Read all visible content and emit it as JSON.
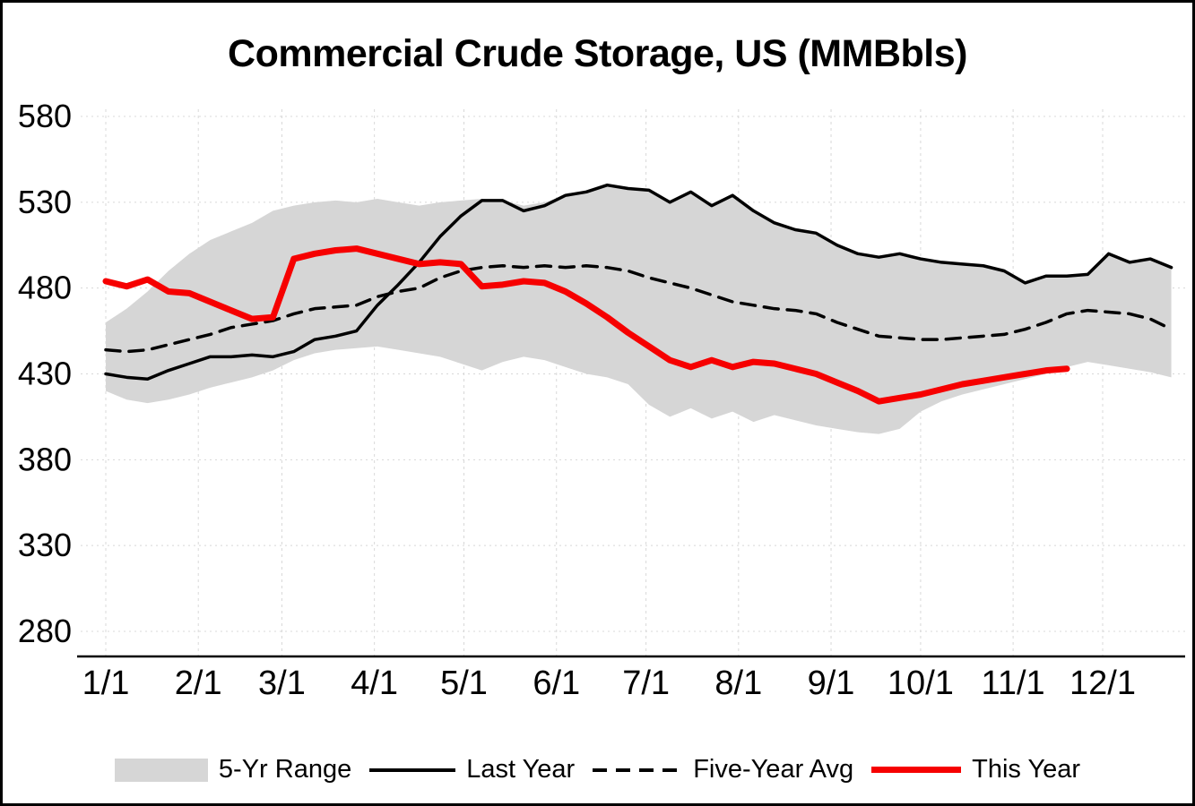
{
  "chart_data": {
    "type": "line",
    "title": "Commercial Crude Storage, US (MMBbls)",
    "ylabel": "",
    "xlabel": "",
    "ylim": [
      280,
      580
    ],
    "yticks": [
      580,
      530,
      480,
      430,
      380,
      330,
      280
    ],
    "xtick_labels": [
      "1/1",
      "2/1",
      "3/1",
      "4/1",
      "5/1",
      "6/1",
      "7/1",
      "8/1",
      "9/1",
      "10/1",
      "11/1",
      "12/1"
    ],
    "month_start_days": [
      1,
      32,
      60,
      91,
      121,
      152,
      182,
      213,
      244,
      274,
      305,
      335
    ],
    "week_interval_days": 7,
    "grid": "light-dashed",
    "legend_position": "bottom",
    "colors": {
      "band": "#d6d6d6",
      "last_year": "#000000",
      "five_year_avg": "#000000",
      "this_year": "#f60000",
      "gridline": "#d8d8d8",
      "axis": "#000000"
    },
    "series": [
      {
        "name": "5-Yr Range",
        "type": "band",
        "max": [
          460,
          468,
          478,
          490,
          500,
          508,
          513,
          518,
          525,
          528,
          530,
          531,
          530,
          532,
          530,
          528,
          530,
          531,
          532,
          531,
          528,
          530,
          534,
          536,
          540,
          538,
          537,
          530,
          536,
          528,
          534,
          525,
          518,
          514,
          512,
          505,
          500,
          498,
          500,
          497,
          495,
          494,
          493,
          490,
          483,
          487,
          487,
          488,
          500,
          495,
          497,
          492
        ],
        "min": [
          420,
          415,
          413,
          415,
          418,
          422,
          425,
          428,
          432,
          438,
          442,
          444,
          445,
          446,
          444,
          442,
          440,
          436,
          432,
          437,
          440,
          438,
          434,
          430,
          428,
          424,
          412,
          405,
          410,
          404,
          408,
          402,
          406,
          403,
          400,
          398,
          396,
          395,
          398,
          408,
          414,
          418,
          421,
          424,
          427,
          430,
          434,
          437,
          435,
          433,
          431,
          428
        ]
      },
      {
        "name": "Last Year",
        "type": "solid",
        "values": [
          430,
          428,
          427,
          432,
          436,
          440,
          440,
          441,
          440,
          443,
          450,
          452,
          455,
          470,
          482,
          495,
          510,
          522,
          531,
          531,
          525,
          528,
          534,
          536,
          540,
          538,
          537,
          530,
          536,
          528,
          534,
          525,
          518,
          514,
          512,
          505,
          500,
          498,
          500,
          497,
          495,
          494,
          493,
          490,
          483,
          487,
          487,
          488,
          500,
          495,
          497,
          492
        ]
      },
      {
        "name": "Five-Year Avg",
        "type": "dashed",
        "values": [
          444,
          443,
          444,
          447,
          450,
          453,
          457,
          459,
          461,
          465,
          468,
          469,
          470,
          475,
          478,
          480,
          486,
          490,
          492,
          493,
          492,
          493,
          492,
          493,
          492,
          490,
          486,
          483,
          480,
          476,
          472,
          470,
          468,
          467,
          465,
          460,
          456,
          452,
          451,
          450,
          450,
          451,
          452,
          453,
          456,
          460,
          465,
          467,
          466,
          465,
          462,
          456
        ]
      },
      {
        "name": "This Year",
        "type": "solid-red",
        "values": [
          484,
          481,
          485,
          478,
          477,
          472,
          467,
          462,
          463,
          497,
          500,
          502,
          503,
          500,
          497,
          494,
          495,
          494,
          481,
          482,
          484,
          483,
          478,
          471,
          463,
          454,
          446,
          438,
          434,
          438,
          434,
          437,
          436,
          433,
          430,
          425,
          420,
          414,
          416,
          418,
          421,
          424,
          426,
          428,
          430,
          432,
          433
        ]
      }
    ],
    "legend": [
      {
        "label": "5-Yr Range"
      },
      {
        "label": "Last Year"
      },
      {
        "label": "Five-Year Avg"
      },
      {
        "label": "This Year"
      }
    ]
  }
}
